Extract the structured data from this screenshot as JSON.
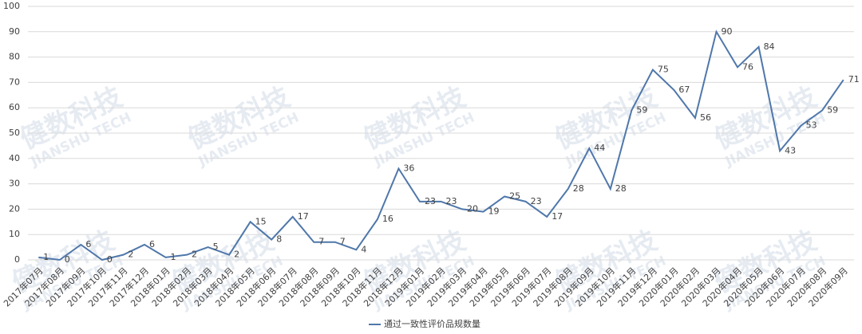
{
  "chart_data": {
    "type": "line",
    "categories": [
      "2017年07月",
      "2017年08月",
      "2017年09月",
      "2017年10月",
      "2017年11月",
      "2017年12月",
      "2018年01月",
      "2018年02月",
      "2018年03月",
      "2018年04月",
      "2018年05月",
      "2018年06月",
      "2018年07月",
      "2018年08月",
      "2018年09月",
      "2018年10月",
      "2018年11月",
      "2018年12月",
      "2019年01月",
      "2019年02月",
      "2019年03月",
      "2019年04月",
      "2019年05月",
      "2019年06月",
      "2019年07月",
      "2019年08月",
      "2019年09月",
      "2019年10月",
      "2019年11月",
      "2019年12月",
      "2020年01月",
      "2020年02月",
      "2020年03月",
      "2020年04月",
      "2020年05月",
      "2020年06月",
      "2020年07月",
      "2020年08月",
      "2020年09月"
    ],
    "series": [
      {
        "name": "通过一致性评价品规数量",
        "color": "#4f77aa",
        "values": [
          1,
          0,
          6,
          0,
          2,
          6,
          1,
          2,
          5,
          2,
          15,
          8,
          17,
          7,
          7,
          4,
          16,
          36,
          23,
          23,
          20,
          19,
          25,
          23,
          17,
          28,
          44,
          28,
          59,
          75,
          67,
          56,
          90,
          76,
          84,
          43,
          53,
          59,
          71
        ]
      }
    ],
    "ylim": [
      0,
      100
    ],
    "yticks": [
      0,
      10,
      20,
      30,
      40,
      50,
      60,
      70,
      80,
      90,
      100
    ],
    "grid": true,
    "legend": "bottom",
    "watermark": {
      "cn": "健数科技",
      "en": "JIANSHU TECH"
    }
  }
}
